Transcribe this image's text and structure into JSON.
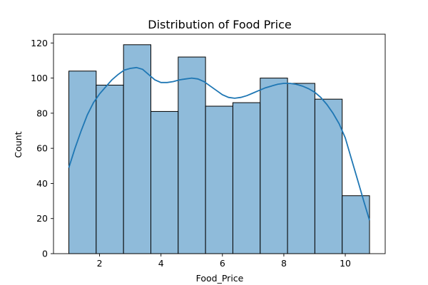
{
  "chart_data": {
    "type": "bar",
    "title": "Distribution of Food Price",
    "xlabel": "Food_Price",
    "ylabel": "Count",
    "bins": [
      {
        "start": 1.0,
        "end": 1.89,
        "count": 104
      },
      {
        "start": 1.89,
        "end": 2.78,
        "count": 96
      },
      {
        "start": 2.78,
        "end": 3.67,
        "count": 119
      },
      {
        "start": 3.67,
        "end": 4.56,
        "count": 81
      },
      {
        "start": 4.56,
        "end": 5.45,
        "count": 112
      },
      {
        "start": 5.45,
        "end": 6.34,
        "count": 84
      },
      {
        "start": 6.34,
        "end": 7.23,
        "count": 86
      },
      {
        "start": 7.23,
        "end": 8.12,
        "count": 100
      },
      {
        "start": 8.12,
        "end": 9.01,
        "count": 97
      },
      {
        "start": 9.01,
        "end": 9.9,
        "count": 88
      },
      {
        "start": 9.9,
        "end": 10.79,
        "count": 33
      }
    ],
    "kde": {
      "name": "",
      "x": [
        1.0,
        1.2,
        1.4,
        1.6,
        1.8,
        2.0,
        2.2,
        2.4,
        2.6,
        2.8,
        3.0,
        3.2,
        3.4,
        3.6,
        3.8,
        4.0,
        4.2,
        4.4,
        4.6,
        4.8,
        5.0,
        5.2,
        5.4,
        5.6,
        5.8,
        6.0,
        6.2,
        6.4,
        6.6,
        6.8,
        7.0,
        7.2,
        7.4,
        7.6,
        7.8,
        8.0,
        8.2,
        8.4,
        8.6,
        8.8,
        9.0,
        9.2,
        9.4,
        9.6,
        9.8,
        10.0,
        10.2,
        10.4,
        10.6,
        10.79
      ],
      "y": [
        49,
        60,
        70,
        79,
        86,
        91,
        95,
        99,
        102,
        104.5,
        105.5,
        106,
        105,
        102,
        99,
        97.5,
        97.5,
        98,
        99,
        99.5,
        100,
        99.5,
        98,
        95.5,
        93,
        90.5,
        89,
        88.5,
        89,
        90,
        91.5,
        93,
        94.5,
        95.5,
        96.5,
        97,
        97,
        96.5,
        95.5,
        94,
        92,
        89,
        85,
        80,
        74,
        66,
        54,
        42,
        30,
        19
      ]
    },
    "xlim": [
      0.5,
      11.3
    ],
    "ylim": [
      0,
      125
    ],
    "xticks": [
      2,
      4,
      6,
      8,
      10
    ],
    "yticks": [
      0,
      20,
      40,
      60,
      80,
      100,
      120
    ],
    "grid": false,
    "colors": {
      "bar_fill": "#8fbbda",
      "bar_edge": "#000000",
      "kde_line": "#1f77b4"
    }
  }
}
